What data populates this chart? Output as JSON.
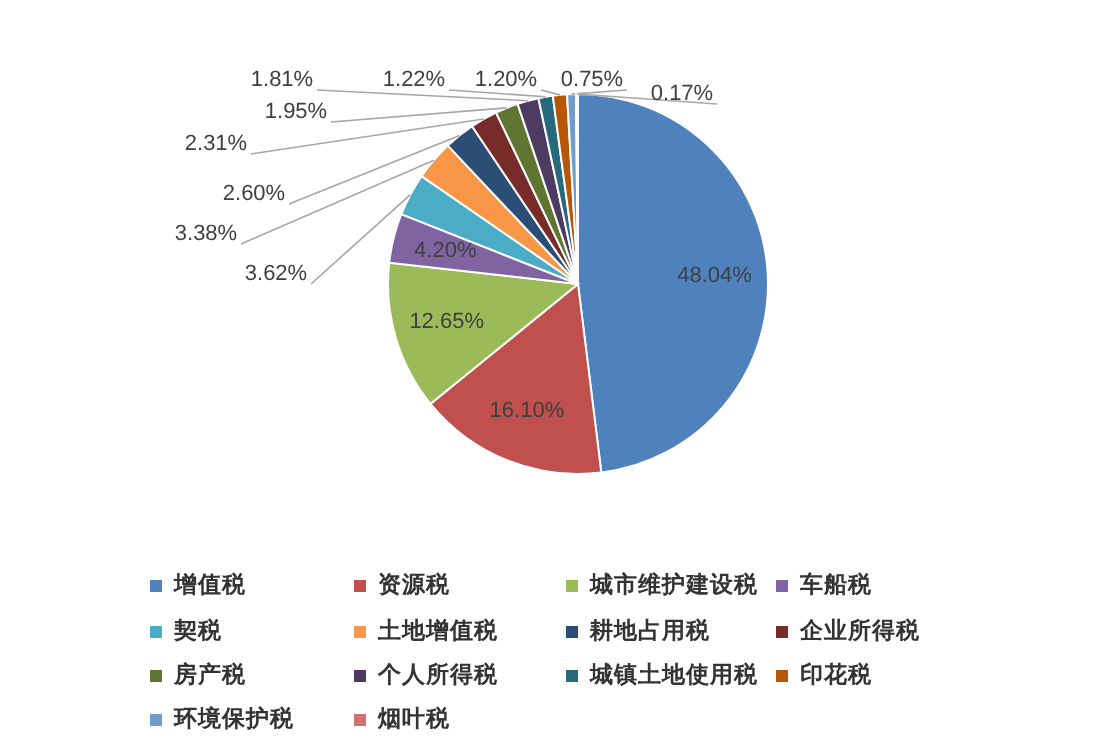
{
  "chart_data": {
    "type": "pie",
    "legend": "bottom",
    "categories": [
      "增值税",
      "资源税",
      "城市维护建设税",
      "车船税",
      "契税",
      "土地增值税",
      "耕地占用税",
      "企业所得税",
      "房产税",
      "个人所得税",
      "城镇土地使用税",
      "印花税",
      "环境保护税",
      "烟叶税"
    ],
    "values": [
      48.04,
      16.1,
      12.65,
      4.2,
      3.62,
      3.38,
      2.6,
      2.31,
      1.95,
      1.81,
      1.22,
      1.2,
      0.75,
      0.17
    ],
    "value_labels": [
      "48.04%",
      "16.10%",
      "12.65%",
      "4.20%",
      "3.62%",
      "3.38%",
      "2.60%",
      "2.31%",
      "1.95%",
      "1.81%",
      "1.22%",
      "1.20%",
      "0.75%",
      "0.17%"
    ],
    "colors": [
      "#4f81bd",
      "#c0504d",
      "#9bbb59",
      "#8064a2",
      "#4bacc6",
      "#f79646",
      "#2c4d75",
      "#772c2a",
      "#5f7530",
      "#4d3b62",
      "#276a7c",
      "#b65708",
      "#729aca",
      "#d0726f"
    ]
  }
}
